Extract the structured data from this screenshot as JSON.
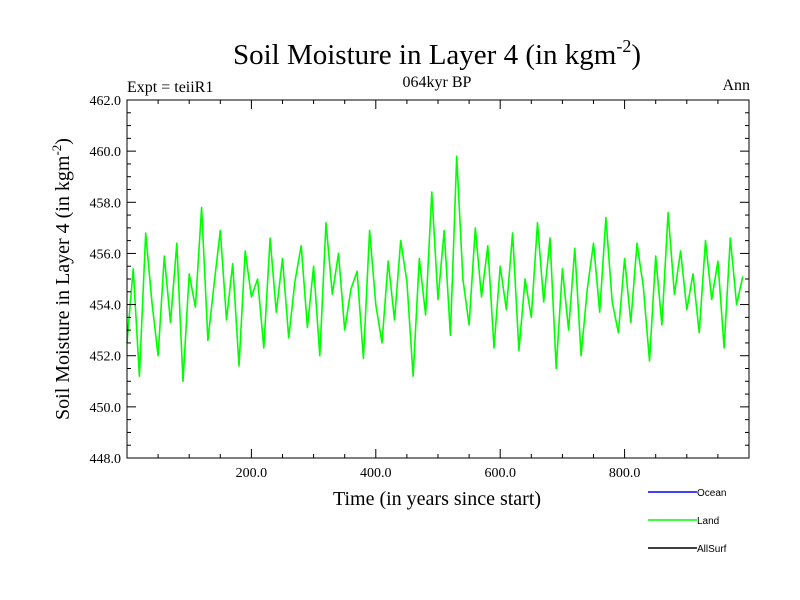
{
  "chart_data": {
    "type": "line",
    "title": "Soil Moisture in Layer 4 (in kgm",
    "title_sup": "-2",
    "title_close": ")",
    "subtitle": "064kyr BP",
    "left_label": "Expt = teiiR1",
    "right_label": "Ann",
    "xlabel": "Time (in years since start)",
    "ylabel": "Soil Moisture in Layer 4 (in kgm",
    "ylabel_sup": "-2",
    "ylabel_close": ")",
    "xlim": [
      0,
      1000
    ],
    "ylim": [
      448,
      462
    ],
    "x_ticks": [
      200,
      400,
      600,
      800
    ],
    "x_tick_labels": [
      "200.0",
      "400.0",
      "600.0",
      "800.0"
    ],
    "y_ticks": [
      448,
      450,
      452,
      454,
      456,
      458,
      460,
      462
    ],
    "y_tick_labels": [
      "448.0",
      "450.0",
      "452.0",
      "454.0",
      "456.0",
      "458.0",
      "460.0",
      "462.0"
    ],
    "legend_position": "bottom-right",
    "series": [
      {
        "name": "Ocean",
        "color": "#0000ff",
        "values": []
      },
      {
        "name": "Land",
        "color": "#00ff00",
        "x_start": 0,
        "x_step": 10,
        "values": [
          452.5,
          455.4,
          451.2,
          456.8,
          454.1,
          452.0,
          455.9,
          453.3,
          456.4,
          451.0,
          455.2,
          453.9,
          457.8,
          452.6,
          454.8,
          456.9,
          453.4,
          455.6,
          451.6,
          456.1,
          454.3,
          455.0,
          452.3,
          456.6,
          453.7,
          455.8,
          452.7,
          454.9,
          456.3,
          453.1,
          455.5,
          452.0,
          457.2,
          454.4,
          456.0,
          453.0,
          454.6,
          455.3,
          451.9,
          456.9,
          454.0,
          452.5,
          455.7,
          453.4,
          456.5,
          454.9,
          451.2,
          455.8,
          453.6,
          458.4,
          454.2,
          456.9,
          452.8,
          459.8,
          455.0,
          453.2,
          457.0,
          454.3,
          456.3,
          452.3,
          455.5,
          453.8,
          456.8,
          452.2,
          455.0,
          453.5,
          457.2,
          454.1,
          456.6,
          451.5,
          455.4,
          453.0,
          456.2,
          452.0,
          454.6,
          456.4,
          453.7,
          457.4,
          454.1,
          452.9,
          455.8,
          453.3,
          456.4,
          454.7,
          451.8,
          455.9,
          453.2,
          457.6,
          454.4,
          456.1,
          453.8,
          455.2,
          452.9,
          456.5,
          454.2,
          455.7,
          452.3,
          456.6,
          454.0,
          455.1
        ]
      },
      {
        "name": "AllSurf",
        "color": "#000000",
        "values": []
      }
    ]
  }
}
